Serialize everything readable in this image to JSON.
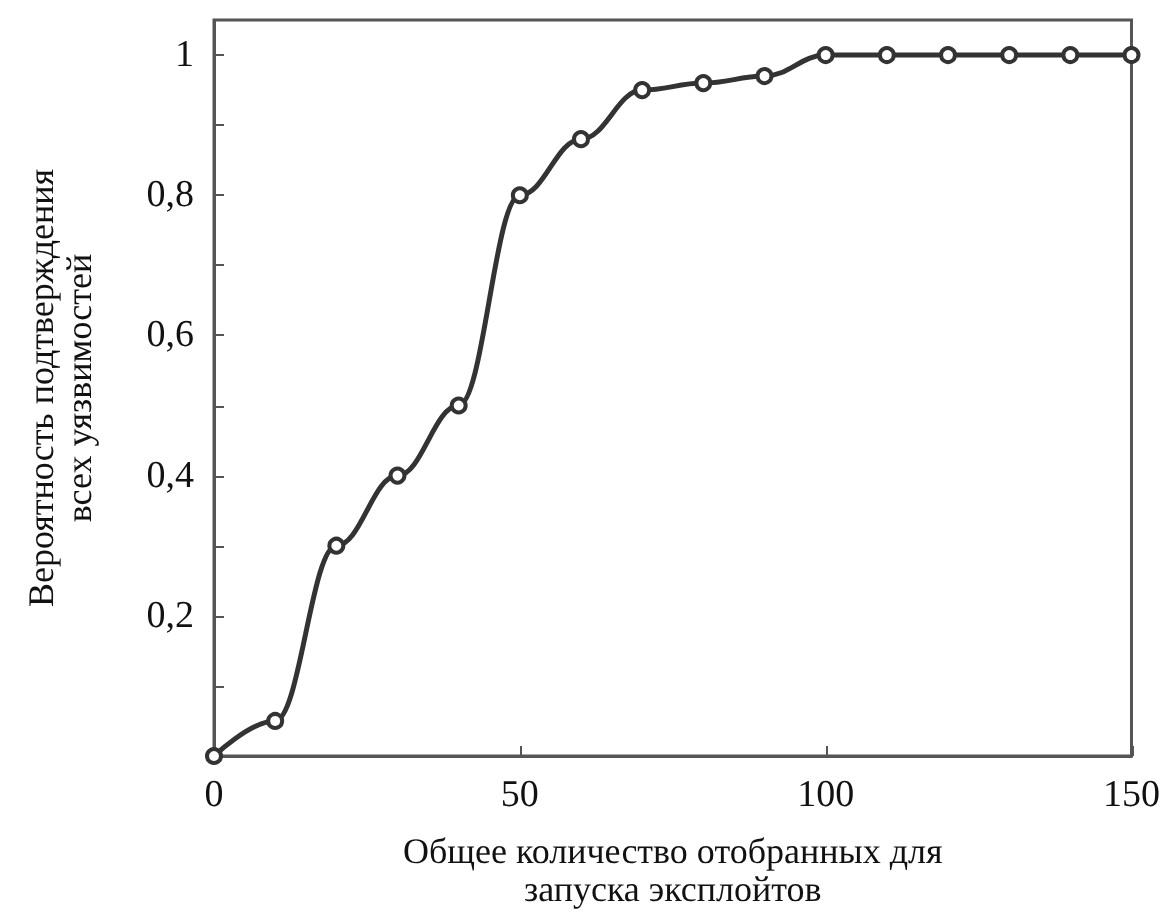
{
  "chart_data": {
    "type": "line",
    "xlabel": "Общее количество отобранных для\nзапуска эксплойтов",
    "ylabel": "Вероятность подтверждения\nвсех уязвимостей",
    "x": [
      0,
      10,
      20,
      30,
      40,
      50,
      60,
      70,
      80,
      90,
      100,
      110,
      120,
      130,
      140,
      150
    ],
    "series": [
      {
        "color": "#333333",
        "values": [
          0,
          0.05,
          0.3,
          0.4,
          0.5,
          0.8,
          0.88,
          0.95,
          0.96,
          0.97,
          1,
          1,
          1,
          1,
          1,
          1
        ]
      }
    ],
    "xlim": [
      0,
      150
    ],
    "xticks": [
      0,
      50,
      100,
      150
    ],
    "ylim": [
      0,
      1.05
    ],
    "yticks": [
      {
        "value": 0,
        "label": null
      },
      {
        "value": 0.1,
        "label": null
      },
      {
        "value": 0.2,
        "label": "0,2"
      },
      {
        "value": 0.3,
        "label": null
      },
      {
        "value": 0.4,
        "label": "0,4"
      },
      {
        "value": 0.5,
        "label": null
      },
      {
        "value": 0.6,
        "label": "0,6"
      },
      {
        "value": 0.7,
        "label": null
      },
      {
        "value": 0.8,
        "label": "0,8"
      },
      {
        "value": 0.9,
        "label": null
      },
      {
        "value": 1,
        "label": "1"
      }
    ],
    "grid": false,
    "marker": "circle",
    "line_style": "solid"
  }
}
